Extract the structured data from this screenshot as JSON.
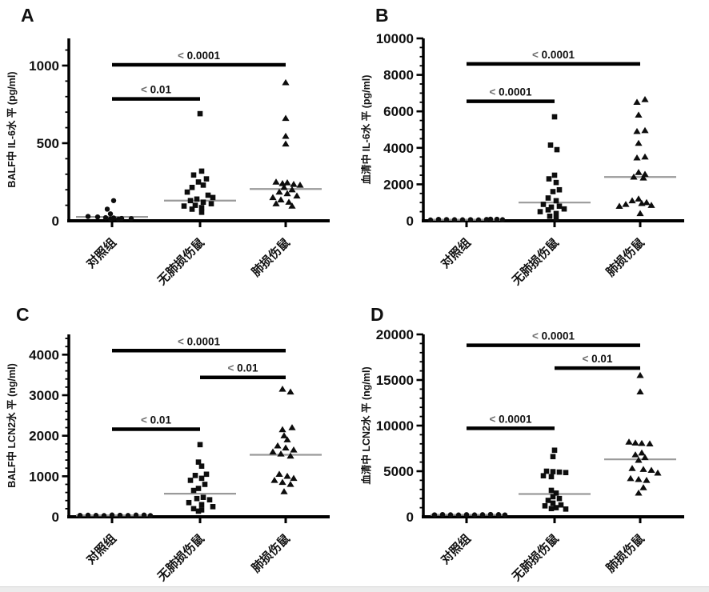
{
  "colors": {
    "marker": "#0d0d0d",
    "axis": "#000000",
    "median_line": "#9a9a9a",
    "sig_bar": "#000000",
    "sig_label_lt": "#6e6e6e",
    "sig_label_num": "#111111"
  },
  "panels": [
    {
      "label": "A",
      "chart_data": {
        "type": "scatter",
        "ylabel": "BALF中 IL-6水 平 (pg/ml)",
        "ylim": [
          0,
          1175
        ],
        "yticks": [
          0,
          500,
          1000
        ],
        "minor_step": 100,
        "categories": [
          "对照组",
          "无肺损伤鼠",
          "肺损伤鼠"
        ],
        "series": [
          {
            "name": "对照组",
            "marker": "circle",
            "median": 25,
            "points": [
              [
                130,
                2
              ],
              [
                75,
                -6
              ],
              [
                45,
                -2
              ],
              [
                28,
                -30
              ],
              [
                25,
                -18
              ],
              [
                20,
                -8
              ],
              [
                18,
                2
              ],
              [
                15,
                12
              ],
              [
                14,
                24
              ],
              [
                12,
                -2
              ],
              [
                10,
                8
              ]
            ]
          },
          {
            "name": "无肺损伤鼠",
            "marker": "square",
            "median": 130,
            "points": [
              [
                690,
                0
              ],
              [
                320,
                2
              ],
              [
                295,
                -8
              ],
              [
                270,
                8
              ],
              [
                250,
                -2
              ],
              [
                230,
                4
              ],
              [
                215,
                -10
              ],
              [
                185,
                -16
              ],
              [
                165,
                10
              ],
              [
                150,
                16
              ],
              [
                140,
                -4
              ],
              [
                130,
                -12
              ],
              [
                120,
                4
              ],
              [
                110,
                14
              ],
              [
                100,
                -6
              ],
              [
                95,
                -20
              ],
              [
                85,
                2
              ],
              [
                75,
                -10
              ],
              [
                55,
                2
              ]
            ]
          },
          {
            "name": "肺损伤鼠",
            "marker": "triangle",
            "median": 205,
            "points": [
              [
                890,
                0
              ],
              [
                660,
                0
              ],
              [
                545,
                0
              ],
              [
                495,
                0
              ],
              [
                250,
                -12
              ],
              [
                245,
                2
              ],
              [
                240,
                -4
              ],
              [
                235,
                10
              ],
              [
                230,
                18
              ],
              [
                215,
                -2
              ],
              [
                200,
                8
              ],
              [
                185,
                -8
              ],
              [
                175,
                2
              ],
              [
                160,
                14
              ],
              [
                150,
                -16
              ],
              [
                135,
                -6
              ],
              [
                120,
                4
              ],
              [
                110,
                -12
              ],
              [
                95,
                8
              ]
            ]
          }
        ],
        "sig_bars": [
          {
            "from": 0,
            "to": 2,
            "y": 1005,
            "label": "< 0.0001"
          },
          {
            "from": 0,
            "to": 1,
            "y": 785,
            "label": "< 0.01"
          }
        ]
      }
    },
    {
      "label": "B",
      "chart_data": {
        "type": "scatter",
        "ylabel": "血清中 IL-6水 平 (pg/ml)",
        "ylim": [
          0,
          10000
        ],
        "yticks": [
          0,
          2000,
          4000,
          6000,
          8000,
          10000
        ],
        "minor_step": 500,
        "categories": [
          "对照组",
          "无肺损伤鼠",
          "肺损伤鼠"
        ],
        "series": [
          {
            "name": "对照组",
            "marker": "circle",
            "median": 60,
            "points": [
              [
                80,
                -35
              ],
              [
                70,
                -25
              ],
              [
                60,
                -15
              ],
              [
                90,
                30
              ],
              [
                55,
                -5
              ],
              [
                65,
                5
              ],
              [
                50,
                15
              ],
              [
                75,
                25
              ],
              [
                45,
                -45
              ],
              [
                85,
                38
              ],
              [
                60,
                45
              ]
            ]
          },
          {
            "name": "无肺损伤鼠",
            "marker": "square",
            "median": 1000,
            "points": [
              [
                5700,
                0
              ],
              [
                4150,
                -5
              ],
              [
                3900,
                3
              ],
              [
                2500,
                0
              ],
              [
                2300,
                -7
              ],
              [
                2100,
                2
              ],
              [
                1700,
                6
              ],
              [
                1600,
                -2
              ],
              [
                1250,
                -8
              ],
              [
                1100,
                2
              ],
              [
                900,
                -14
              ],
              [
                800,
                6
              ],
              [
                750,
                -4
              ],
              [
                650,
                12
              ],
              [
                600,
                -8
              ],
              [
                500,
                -18
              ],
              [
                400,
                2
              ],
              [
                250,
                -6
              ],
              [
                120,
                2
              ]
            ]
          },
          {
            "name": "肺损伤鼠",
            "marker": "triangle",
            "median": 2400,
            "points": [
              [
                6650,
                6
              ],
              [
                6500,
                -4
              ],
              [
                5800,
                -2
              ],
              [
                4950,
                6
              ],
              [
                4900,
                -4
              ],
              [
                4250,
                -2
              ],
              [
                3500,
                6
              ],
              [
                3450,
                -4
              ],
              [
                2650,
                -2
              ],
              [
                2550,
                6
              ],
              [
                2400,
                -8
              ],
              [
                2350,
                4
              ],
              [
                1200,
                -2
              ],
              [
                1100,
                -10
              ],
              [
                1000,
                8
              ],
              [
                950,
                2
              ],
              [
                900,
                -18
              ],
              [
                850,
                14
              ],
              [
                800,
                -26
              ],
              [
                400,
                0
              ]
            ]
          }
        ],
        "sig_bars": [
          {
            "from": 0,
            "to": 2,
            "y": 8600,
            "label": "< 0.0001"
          },
          {
            "from": 0,
            "to": 1,
            "y": 6550,
            "label": "< 0.0001"
          }
        ]
      }
    },
    {
      "label": "C",
      "chart_data": {
        "type": "scatter",
        "ylabel": "BALF中 LCN2水 平 (ng/ml)",
        "ylim": [
          0,
          4500
        ],
        "yticks": [
          0,
          1000,
          2000,
          3000,
          4000
        ],
        "minor_step": 200,
        "categories": [
          "对照组",
          "无肺损伤鼠",
          "肺损伤鼠"
        ],
        "series": [
          {
            "name": "对照组",
            "marker": "circle",
            "median": 35,
            "points": [
              [
                40,
                -30
              ],
              [
                35,
                -20
              ],
              [
                30,
                -10
              ],
              [
                45,
                0
              ],
              [
                38,
                10
              ],
              [
                32,
                20
              ],
              [
                42,
                30
              ],
              [
                36,
                -40
              ],
              [
                44,
                40
              ],
              [
                30,
                48
              ]
            ]
          },
          {
            "name": "无肺损伤鼠",
            "marker": "square",
            "median": 570,
            "points": [
              [
                1780,
                0
              ],
              [
                1350,
                -2
              ],
              [
                1250,
                2
              ],
              [
                1050,
                8
              ],
              [
                1020,
                -6
              ],
              [
                950,
                2
              ],
              [
                900,
                -12
              ],
              [
                800,
                6
              ],
              [
                700,
                -2
              ],
              [
                650,
                -8
              ],
              [
                480,
                4
              ],
              [
                450,
                -4
              ],
              [
                420,
                12
              ],
              [
                350,
                -14
              ],
              [
                300,
                2
              ],
              [
                250,
                16
              ],
              [
                200,
                -8
              ],
              [
                170,
                2
              ],
              [
                140,
                -2
              ]
            ]
          },
          {
            "name": "肺损伤鼠",
            "marker": "triangle",
            "median": 1530,
            "points": [
              [
                3150,
                -4
              ],
              [
                3080,
                6
              ],
              [
                2200,
                8
              ],
              [
                2150,
                -4
              ],
              [
                2000,
                -2
              ],
              [
                1900,
                2
              ],
              [
                1750,
                -10
              ],
              [
                1700,
                0
              ],
              [
                1650,
                10
              ],
              [
                1600,
                -16
              ],
              [
                1550,
                -6
              ],
              [
                1500,
                6
              ],
              [
                1050,
                -8
              ],
              [
                1000,
                2
              ],
              [
                950,
                10
              ],
              [
                900,
                -14
              ],
              [
                850,
                -4
              ],
              [
                800,
                6
              ],
              [
                620,
                -2
              ]
            ]
          }
        ],
        "sig_bars": [
          {
            "from": 0,
            "to": 2,
            "y": 4100,
            "label": "< 0.0001"
          },
          {
            "from": 1,
            "to": 2,
            "y": 3440,
            "label": "< 0.01"
          },
          {
            "from": 0,
            "to": 1,
            "y": 2160,
            "label": "< 0.01"
          }
        ]
      }
    },
    {
      "label": "D",
      "chart_data": {
        "type": "scatter",
        "ylabel": "血清中 LCN2水 平 (ng/ml)",
        "ylim": [
          0,
          20000
        ],
        "yticks": [
          0,
          5000,
          10000,
          15000,
          20000
        ],
        "minor_step": 1000,
        "categories": [
          "对照组",
          "无肺损伤鼠",
          "肺损伤鼠"
        ],
        "series": [
          {
            "name": "对照组",
            "marker": "circle",
            "median": 220,
            "points": [
              [
                250,
                -30
              ],
              [
                220,
                -20
              ],
              [
                200,
                -10
              ],
              [
                240,
                0
              ],
              [
                210,
                10
              ],
              [
                230,
                20
              ],
              [
                260,
                30
              ],
              [
                215,
                -40
              ],
              [
                245,
                40
              ],
              [
                205,
                48
              ]
            ]
          },
          {
            "name": "无肺损伤鼠",
            "marker": "square",
            "median": 2500,
            "points": [
              [
                7300,
                0
              ],
              [
                6600,
                -2
              ],
              [
                5000,
                -10
              ],
              [
                4950,
                -2
              ],
              [
                4900,
                6
              ],
              [
                4850,
                14
              ],
              [
                4500,
                -14
              ],
              [
                4400,
                -4
              ],
              [
                2900,
                -4
              ],
              [
                2600,
                2
              ],
              [
                2200,
                -2
              ],
              [
                2000,
                6
              ],
              [
                1800,
                -8
              ],
              [
                1500,
                -2
              ],
              [
                1300,
                8
              ],
              [
                1200,
                -12
              ],
              [
                1000,
                2
              ],
              [
                900,
                -4
              ],
              [
                850,
                14
              ]
            ]
          },
          {
            "name": "肺损伤鼠",
            "marker": "triangle",
            "median": 6300,
            "points": [
              [
                15500,
                0
              ],
              [
                13700,
                0
              ],
              [
                8200,
                -14
              ],
              [
                8100,
                -6
              ],
              [
                8050,
                2
              ],
              [
                8000,
                12
              ],
              [
                7000,
                2
              ],
              [
                6800,
                -6
              ],
              [
                6500,
                6
              ],
              [
                6200,
                -2
              ],
              [
                5300,
                -10
              ],
              [
                5200,
                4
              ],
              [
                5100,
                14
              ],
              [
                4800,
                22
              ],
              [
                4200,
                -12
              ],
              [
                4100,
                -2
              ],
              [
                4000,
                8
              ],
              [
                3200,
                4
              ],
              [
                2600,
                -2
              ]
            ]
          }
        ],
        "sig_bars": [
          {
            "from": 0,
            "to": 2,
            "y": 18800,
            "label": "< 0.0001"
          },
          {
            "from": 1,
            "to": 2,
            "y": 16300,
            "label": "< 0.01"
          },
          {
            "from": 0,
            "to": 1,
            "y": 9700,
            "label": "< 0.0001"
          }
        ]
      }
    }
  ]
}
